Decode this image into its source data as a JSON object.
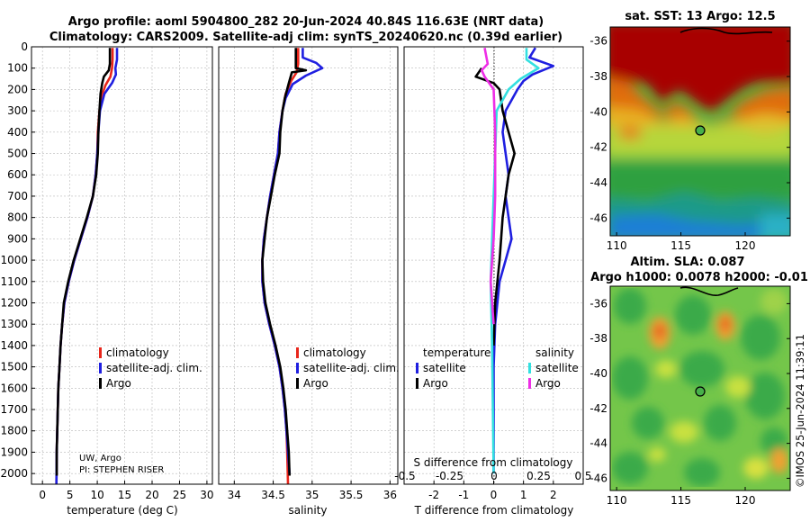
{
  "title_line1": "Argo profile: aoml 5904800_282 20-Jun-2024 40.84S 116.63E (NRT data)",
  "title_line2": "Climatology: CARS2009. Satellite-adj clim: synTS_20240620.nc (0.39d earlier)",
  "credit": "©IMOS 25-Jun-2024 11:39:11",
  "colors": {
    "climatology": "#e8261b",
    "satellite": "#1f1fe0",
    "argo": "#000000",
    "sat_salinity": "#33e0e0",
    "argo_salinity": "#ee2ee6"
  },
  "chart_data": [
    {
      "id": "temperature",
      "type": "line",
      "xlabel": "temperature (deg C)",
      "ylabel": "",
      "xlim": [
        -2,
        31
      ],
      "ylim": [
        2050,
        0
      ],
      "xticks": [
        0,
        5,
        10,
        15,
        20,
        25,
        30
      ],
      "xtick_labels": [
        "0",
        "5",
        "10",
        "15",
        "20",
        "25",
        "30"
      ],
      "yticks": [
        0,
        100,
        200,
        300,
        400,
        500,
        600,
        700,
        800,
        900,
        1000,
        1100,
        1200,
        1300,
        1400,
        1500,
        1600,
        1700,
        1800,
        1900,
        2000
      ],
      "ytick_labels": [
        "0",
        "100",
        "200",
        "300",
        "400",
        "500",
        "600",
        "700",
        "800",
        "900",
        "1000",
        "1100",
        "1200",
        "1300",
        "1400",
        "1500",
        "1600",
        "1700",
        "1800",
        "1900",
        "2000"
      ],
      "legend": [
        "climatology",
        "satellite-adj. clim.",
        "Argo"
      ],
      "annotation": [
        "UW, Argo",
        "PI: STEPHEN RISER"
      ],
      "series": [
        {
          "name": "climatology",
          "color": "#e8261b",
          "points": [
            [
              12.8,
              5
            ],
            [
              12.8,
              60
            ],
            [
              12.7,
              100
            ],
            [
              12.4,
              140
            ],
            [
              11.5,
              180
            ],
            [
              10.8,
              230
            ],
            [
              10.4,
              300
            ],
            [
              10.1,
              400
            ],
            [
              10.0,
              500
            ],
            [
              9.7,
              600
            ],
            [
              9.2,
              700
            ],
            [
              8.2,
              800
            ],
            [
              7.0,
              900
            ],
            [
              5.8,
              1000
            ],
            [
              4.8,
              1100
            ],
            [
              4.0,
              1200
            ],
            [
              3.6,
              1300
            ],
            [
              3.3,
              1400
            ],
            [
              3.1,
              1500
            ],
            [
              2.9,
              1600
            ],
            [
              2.8,
              1700
            ],
            [
              2.7,
              1800
            ],
            [
              2.6,
              1900
            ],
            [
              2.55,
              2050
            ]
          ]
        },
        {
          "name": "satellite-adj. clim.",
          "color": "#1f1fe0",
          "points": [
            [
              13.6,
              5
            ],
            [
              13.6,
              60
            ],
            [
              13.3,
              100
            ],
            [
              13.4,
              130
            ],
            [
              12.7,
              170
            ],
            [
              11.3,
              220
            ],
            [
              10.5,
              300
            ],
            [
              10.2,
              400
            ],
            [
              10.0,
              500
            ],
            [
              9.7,
              600
            ],
            [
              9.2,
              700
            ],
            [
              8.2,
              800
            ],
            [
              7.0,
              900
            ],
            [
              5.8,
              1000
            ],
            [
              4.8,
              1100
            ],
            [
              4.0,
              1200
            ],
            [
              3.6,
              1300
            ],
            [
              3.3,
              1400
            ],
            [
              3.1,
              1500
            ],
            [
              2.9,
              1600
            ],
            [
              2.8,
              1700
            ],
            [
              2.7,
              1800
            ],
            [
              2.6,
              1900
            ],
            [
              2.55,
              2050
            ]
          ]
        },
        {
          "name": "Argo",
          "color": "#000000",
          "points": [
            [
              12.3,
              5
            ],
            [
              12.3,
              80
            ],
            [
              12.1,
              110
            ],
            [
              11.2,
              140
            ],
            [
              10.9,
              170
            ],
            [
              10.6,
              220
            ],
            [
              10.4,
              300
            ],
            [
              10.2,
              400
            ],
            [
              10.1,
              500
            ],
            [
              9.8,
              600
            ],
            [
              9.2,
              700
            ],
            [
              8.1,
              800
            ],
            [
              6.9,
              900
            ],
            [
              5.7,
              1000
            ],
            [
              4.7,
              1100
            ],
            [
              3.9,
              1200
            ],
            [
              3.6,
              1300
            ],
            [
              3.3,
              1400
            ],
            [
              3.1,
              1500
            ],
            [
              2.9,
              1600
            ],
            [
              2.8,
              1700
            ],
            [
              2.7,
              1800
            ],
            [
              2.6,
              1900
            ],
            [
              2.6,
              2010
            ]
          ]
        }
      ]
    },
    {
      "id": "salinity",
      "type": "line",
      "xlabel": "salinity",
      "xlim": [
        33.8,
        36.1
      ],
      "ylim": [
        2050,
        0
      ],
      "xticks": [
        34,
        34.5,
        35,
        35.5,
        36
      ],
      "xtick_labels": [
        "34",
        "34.5",
        "35",
        "35.5",
        "36"
      ],
      "legend": [
        "climatology",
        "satellite-adj. clim.",
        "Argo"
      ],
      "series": [
        {
          "name": "climatology",
          "color": "#e8261b",
          "points": [
            [
              34.82,
              5
            ],
            [
              34.82,
              80
            ],
            [
              34.8,
              120
            ],
            [
              34.73,
              160
            ],
            [
              34.66,
              220
            ],
            [
              34.62,
              300
            ],
            [
              34.58,
              400
            ],
            [
              34.56,
              500
            ],
            [
              34.51,
              600
            ],
            [
              34.46,
              700
            ],
            [
              34.42,
              800
            ],
            [
              34.38,
              900
            ],
            [
              34.36,
              1000
            ],
            [
              34.36,
              1100
            ],
            [
              34.39,
              1200
            ],
            [
              34.45,
              1300
            ],
            [
              34.52,
              1400
            ],
            [
              34.58,
              1500
            ],
            [
              34.62,
              1600
            ],
            [
              34.65,
              1700
            ],
            [
              34.67,
              1800
            ],
            [
              34.68,
              1900
            ],
            [
              34.69,
              2050
            ]
          ]
        },
        {
          "name": "satellite-adj. clim.",
          "color": "#1f1fe0",
          "points": [
            [
              34.88,
              5
            ],
            [
              34.88,
              50
            ],
            [
              35.05,
              75
            ],
            [
              35.13,
              100
            ],
            [
              34.92,
              135
            ],
            [
              34.75,
              175
            ],
            [
              34.66,
              240
            ],
            [
              34.62,
              300
            ],
            [
              34.58,
              400
            ],
            [
              34.56,
              500
            ],
            [
              34.51,
              600
            ],
            [
              34.46,
              700
            ],
            [
              34.42,
              800
            ],
            [
              34.38,
              900
            ],
            [
              34.36,
              1000
            ],
            [
              34.36,
              1100
            ],
            [
              34.39,
              1200
            ],
            [
              34.45,
              1300
            ],
            [
              34.52,
              1400
            ],
            [
              34.58,
              1500
            ],
            [
              34.62,
              1600
            ],
            [
              34.65,
              1700
            ],
            [
              34.67,
              1800
            ],
            [
              34.69,
              1900
            ],
            [
              34.71,
              2000
            ]
          ]
        },
        {
          "name": "Argo",
          "color": "#000000",
          "points": [
            [
              34.79,
              5
            ],
            [
              34.79,
              100
            ],
            [
              34.92,
              110
            ],
            [
              34.74,
              120
            ],
            [
              34.7,
              170
            ],
            [
              34.65,
              240
            ],
            [
              34.62,
              300
            ],
            [
              34.59,
              400
            ],
            [
              34.58,
              500
            ],
            [
              34.52,
              600
            ],
            [
              34.47,
              700
            ],
            [
              34.42,
              800
            ],
            [
              34.39,
              900
            ],
            [
              34.36,
              1000
            ],
            [
              34.37,
              1100
            ],
            [
              34.4,
              1200
            ],
            [
              34.46,
              1300
            ],
            [
              34.53,
              1400
            ],
            [
              34.59,
              1500
            ],
            [
              34.63,
              1600
            ],
            [
              34.66,
              1700
            ],
            [
              34.68,
              1800
            ],
            [
              34.7,
              1900
            ],
            [
              34.71,
              2010
            ]
          ]
        }
      ]
    },
    {
      "id": "differences",
      "type": "line",
      "xlabel": "T difference from climatology",
      "top_label": "S difference from climatology",
      "xlim": [
        -3,
        3
      ],
      "ylim": [
        2050,
        0
      ],
      "xticks": [
        -2,
        -1,
        0,
        1,
        2
      ],
      "xtick_labels": [
        "-2",
        "-1",
        "0",
        "1",
        "2"
      ],
      "s_ticks": [
        -0.5,
        -0.25,
        0,
        0.25,
        0.5
      ],
      "s_tick_labels": [
        "-0.5",
        "-0.25",
        "0",
        "0.25",
        "0.5"
      ],
      "legend_left_title": "temperature",
      "legend_right_title": "salinity",
      "legend_left": [
        "satellite",
        "Argo"
      ],
      "legend_right": [
        "satellite",
        "Argo"
      ],
      "series": [
        {
          "name": "temperature satellite",
          "color": "#1f1fe0",
          "points": [
            [
              1.4,
              5
            ],
            [
              1.2,
              50
            ],
            [
              2.0,
              90
            ],
            [
              1.3,
              130
            ],
            [
              1.0,
              160
            ],
            [
              0.8,
              200
            ],
            [
              0.4,
              300
            ],
            [
              0.3,
              400
            ],
            [
              0.4,
              500
            ],
            [
              0.5,
              600
            ],
            [
              0.4,
              700
            ],
            [
              0.5,
              800
            ],
            [
              0.6,
              900
            ],
            [
              0.4,
              1000
            ],
            [
              0.2,
              1100
            ],
            [
              0.05,
              1300
            ],
            [
              0.0,
              1500
            ],
            [
              0.0,
              2000
            ]
          ]
        },
        {
          "name": "temperature Argo",
          "color": "#000000",
          "points": [
            [
              -0.4,
              100
            ],
            [
              -0.6,
              140
            ],
            [
              0.0,
              170
            ],
            [
              0.2,
              200
            ],
            [
              0.3,
              300
            ],
            [
              0.5,
              400
            ],
            [
              0.7,
              500
            ],
            [
              0.5,
              600
            ],
            [
              0.3,
              800
            ],
            [
              0.2,
              1000
            ],
            [
              0.05,
              1200
            ],
            [
              0.0,
              1400
            ]
          ]
        },
        {
          "name": "salinity satellite",
          "color": "#33e0e0",
          "points": [
            [
              1.1,
              5
            ],
            [
              1.1,
              60
            ],
            [
              1.5,
              100
            ],
            [
              0.9,
              150
            ],
            [
              0.5,
              200
            ],
            [
              0.1,
              300
            ],
            [
              0.05,
              500
            ],
            [
              -0.05,
              900
            ],
            [
              -0.1,
              1100
            ],
            [
              -0.05,
              1400
            ],
            [
              0.0,
              2000
            ]
          ]
        },
        {
          "name": "salinity Argo",
          "color": "#ee2ee6",
          "points": [
            [
              -0.3,
              5
            ],
            [
              -0.2,
              80
            ],
            [
              -0.4,
              110
            ],
            [
              -0.3,
              140
            ],
            [
              0.0,
              200
            ],
            [
              0.05,
              400
            ],
            [
              0.05,
              700
            ],
            [
              0.0,
              900
            ],
            [
              -0.05,
              1000
            ],
            [
              -0.1,
              1100
            ],
            [
              0.0,
              1300
            ]
          ]
        }
      ]
    },
    {
      "id": "sst_map",
      "type": "heatmap",
      "title": "sat. SST: 13 Argo: 12.5",
      "xlim": [
        109.5,
        123.5
      ],
      "ylim": [
        -47,
        -35.2
      ],
      "xticks": [
        110,
        115,
        120
      ],
      "xtick_labels": [
        "110",
        "115",
        "120"
      ],
      "yticks": [
        -36,
        -38,
        -40,
        -42,
        -44,
        -46
      ],
      "ytick_labels": [
        "-36",
        "-38",
        "-40",
        "-42",
        "-44",
        "-46"
      ],
      "marker": {
        "lon": 116.63,
        "lat": -40.84
      }
    },
    {
      "id": "sla_map",
      "type": "heatmap",
      "title_line1": "Altim. SLA: 0.087",
      "title_line2": "Argo h1000: 0.0078 h2000: -0.01",
      "xlim": [
        109.5,
        123.5
      ],
      "ylim": [
        -46.7,
        -35
      ],
      "xticks": [
        110,
        115,
        120
      ],
      "xtick_labels": [
        "110",
        "115",
        "120"
      ],
      "yticks": [
        -36,
        -38,
        -40,
        -42,
        -44,
        -46
      ],
      "ytick_labels": [
        "-36",
        "-38",
        "-40",
        "-42",
        "-44",
        "-46"
      ],
      "marker": {
        "lon": 116.63,
        "lat": -40.84
      }
    }
  ]
}
